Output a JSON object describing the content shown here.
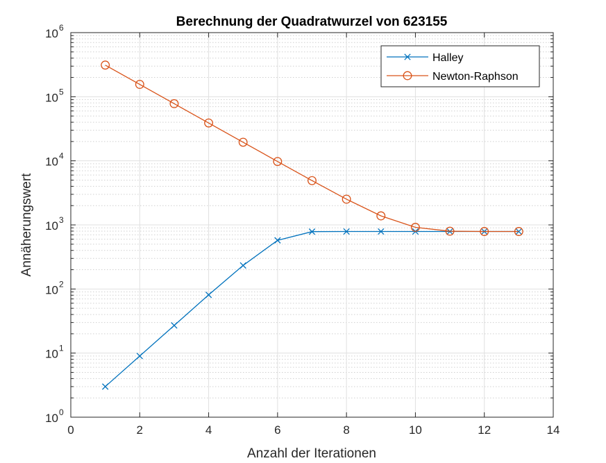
{
  "chart_data": {
    "type": "line",
    "title": "Berechnung der Quadratwurzel von 623155",
    "xlabel": "Anzahl der Iterationen",
    "ylabel": "Annäherungswert",
    "xlim": [
      0,
      14
    ],
    "ylim": [
      1,
      1000000
    ],
    "yscale": "log",
    "grid": true,
    "minor_grid": true,
    "legend_position": "top-right",
    "x_ticks": [
      "0",
      "2",
      "4",
      "6",
      "8",
      "10",
      "12",
      "14"
    ],
    "y_ticks": [
      {
        "base": "10",
        "exp": "0"
      },
      {
        "base": "10",
        "exp": "1"
      },
      {
        "base": "10",
        "exp": "2"
      },
      {
        "base": "10",
        "exp": "3"
      },
      {
        "base": "10",
        "exp": "4"
      },
      {
        "base": "10",
        "exp": "5"
      },
      {
        "base": "10",
        "exp": "6"
      }
    ],
    "series": [
      {
        "name": "Halley",
        "color": "#0072BD",
        "marker": "x",
        "x": [
          1,
          2,
          3,
          4,
          5,
          6,
          7,
          8,
          9,
          10,
          11,
          12,
          13
        ],
        "y": [
          3,
          9,
          27,
          81,
          233,
          575,
          785,
          789,
          789,
          789,
          789,
          789,
          789
        ]
      },
      {
        "name": "Newton-Raphson",
        "color": "#D95319",
        "marker": "o",
        "x": [
          1,
          2,
          3,
          4,
          5,
          6,
          7,
          8,
          9,
          10,
          11,
          12,
          13
        ],
        "y": [
          311578,
          155790,
          77897,
          38952,
          19484,
          9758,
          4911,
          2519,
          1383,
          917,
          798,
          789,
          789
        ]
      }
    ]
  }
}
